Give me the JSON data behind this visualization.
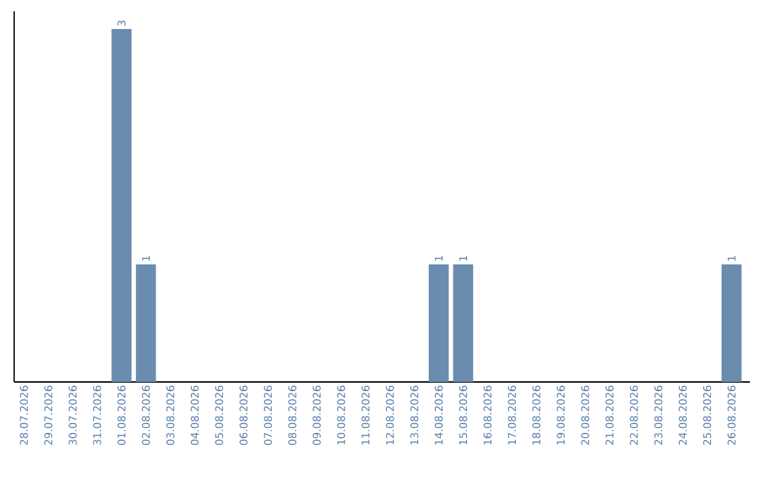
{
  "chart_data": {
    "type": "bar",
    "categories": [
      "28.07.2026",
      "29.07.2026",
      "30.07.2026",
      "31.07.2026",
      "01.08.2026",
      "02.08.2026",
      "03.08.2026",
      "04.08.2026",
      "05.08.2026",
      "06.08.2026",
      "07.08.2026",
      "08.08.2026",
      "09.08.2026",
      "10.08.2026",
      "11.08.2026",
      "12.08.2026",
      "13.08.2026",
      "14.08.2026",
      "15.08.2026",
      "16.08.2026",
      "17.08.2026",
      "18.08.2026",
      "19.08.2026",
      "20.08.2026",
      "21.08.2026",
      "22.08.2026",
      "23.08.2026",
      "24.08.2026",
      "25.08.2026",
      "26.08.2026"
    ],
    "values": [
      0,
      0,
      0,
      0,
      3,
      1,
      0,
      0,
      0,
      0,
      0,
      0,
      0,
      0,
      0,
      0,
      0,
      1,
      1,
      0,
      0,
      0,
      0,
      0,
      0,
      0,
      0,
      0,
      0,
      1
    ],
    "value_labels": [
      null,
      null,
      null,
      null,
      "3",
      "1",
      null,
      null,
      null,
      null,
      null,
      null,
      null,
      null,
      null,
      null,
      null,
      "1",
      "1",
      null,
      null,
      null,
      null,
      null,
      null,
      null,
      null,
      null,
      null,
      "1"
    ],
    "color": "#6a8caf"
  }
}
